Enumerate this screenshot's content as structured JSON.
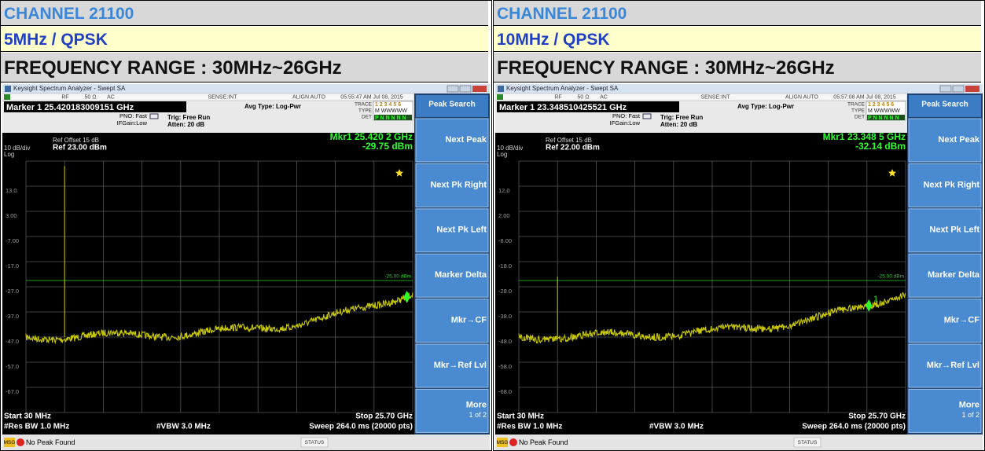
{
  "panels": [
    {
      "channel": "CHANNEL 21100",
      "mode": "5MHz / QPSK",
      "range": "FREQUENCY RANGE : 30MHz~26GHz",
      "screen": {
        "window_title": "Keysight Spectrum Analyzer - Swept SA",
        "rf": "RF",
        "impedance": "50 Ω",
        "coupling": "AC",
        "sense": "SENSE:INT",
        "align": "ALIGN AUTO",
        "timestamp": "05:55:47 AM Jul 08, 2015",
        "marker": "Marker 1 25.420183009151 GHz",
        "pno": "PNO: Fast",
        "ifgain": "IFGain:Low",
        "trig": "Trig: Free Run",
        "atten": "Atten: 20 dB",
        "avg_type": "Avg Type: Log-Pwr",
        "trace": "TRACE",
        "type": "TYPE",
        "det": "DET",
        "trace_nums": "1 2 3 4 5 6",
        "type_codes": "M WWWWW",
        "det_codes": "P N N N N N",
        "ref_offset": "Ref Offset 15 dB",
        "scale": "10 dB/div",
        "log": "Log",
        "ref_level": "Ref 23.00 dBm",
        "mkr_freq": "Mkr1 25.420 2 GHz",
        "mkr_level": "-29.75 dBm",
        "y_labels": [
          "13.0",
          "3.00",
          "-7.00",
          "-17.0",
          "-27.0",
          "-37.0",
          "-47.0",
          "-57.0",
          "-67.0"
        ],
        "limit_label": "-25.00 dBm",
        "start": "Start 30 MHz",
        "stop": "Stop 25.70 GHz",
        "rbw": "#Res BW 1.0 MHz",
        "vbw": "#VBW 3.0 MHz",
        "sweep": "Sweep  264.0 ms (20000 pts)",
        "msg": "MSG",
        "message": "No Peak Found",
        "status": "STATUS",
        "softkeys": [
          "Peak Search",
          "Next Peak",
          "Next Pk Right",
          "Next Pk Left",
          "Marker Delta",
          "Mkr→CF",
          "Mkr→Ref Lvl",
          "More"
        ],
        "page": "1 of 2"
      }
    },
    {
      "channel": "CHANNEL 21100",
      "mode": "10MHz / QPSK",
      "range": "FREQUENCY RANGE : 30MHz~26GHz",
      "screen": {
        "window_title": "Keysight Spectrum Analyzer - Swept SA",
        "rf": "RF",
        "impedance": "50 Ω",
        "coupling": "AC",
        "sense": "SENSE:INT",
        "align": "ALIGN AUTO",
        "timestamp": "05:57:08 AM Jul 08, 2015",
        "marker": "Marker 1 23.348510425521 GHz",
        "pno": "PNO: Fast",
        "ifgain": "IFGain:Low",
        "trig": "Trig: Free Run",
        "atten": "Atten: 20 dB",
        "avg_type": "Avg Type: Log-Pwr",
        "trace": "TRACE",
        "type": "TYPE",
        "det": "DET",
        "trace_nums": "1 2 3 4 5 6",
        "type_codes": "M WWWWW",
        "det_codes": "P N N N N N",
        "ref_offset": "Ref Offset 15 dB",
        "scale": "10 dB/div",
        "log": "Log",
        "ref_level": "Ref 22.00 dBm",
        "mkr_freq": "Mkr1 23.348 5 GHz",
        "mkr_level": "-32.14 dBm",
        "y_labels": [
          "12.0",
          "2.00",
          "-8.00",
          "-18.0",
          "-28.0",
          "-38.0",
          "-48.0",
          "-58.0",
          "-68.0"
        ],
        "limit_label": "-25.00 dBm",
        "marker_number": "1",
        "start": "Start 30 MHz",
        "stop": "Stop 25.70 GHz",
        "rbw": "#Res BW 1.0 MHz",
        "vbw": "#VBW 3.0 MHz",
        "sweep": "Sweep  264.0 ms (20000 pts)",
        "msg": "MSG",
        "message": "No Peak Found",
        "status": "STATUS",
        "softkeys": [
          "Peak Search",
          "Next Peak",
          "Next Pk Right",
          "Next Pk Left",
          "Marker Delta",
          "Mkr→CF",
          "Mkr→Ref Lvl",
          "More"
        ],
        "page": "1 of 2"
      }
    }
  ]
}
